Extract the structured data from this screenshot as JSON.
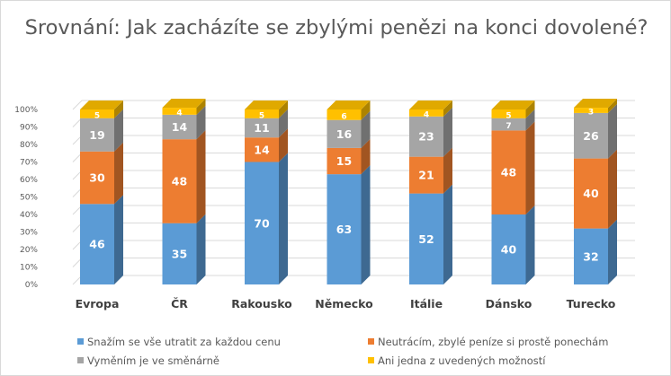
{
  "chart_data": {
    "type": "bar",
    "stacked": true,
    "percent": true,
    "three_d": true,
    "title": "Srovnání: Jak zacházíte se zbylými penězi na konci dovolené?",
    "categories": [
      "Evropa",
      "ČR",
      "Rakousko",
      "Německo",
      "Itálie",
      "Dánsko",
      "Turecko"
    ],
    "ylim": [
      0,
      100
    ],
    "yticks": [
      "0%",
      "10%",
      "20%",
      "30%",
      "40%",
      "50%",
      "60%",
      "70%",
      "80%",
      "90%",
      "100%"
    ],
    "grid": true,
    "legend_position": "bottom",
    "series": [
      {
        "name": "Snažím se vše utratit za každou cenu",
        "color": "#5b9bd5",
        "values": [
          46,
          35,
          70,
          63,
          52,
          40,
          32
        ]
      },
      {
        "name": "Neutrácím, zbylé peníze si prostě ponechám",
        "color": "#ed7d31",
        "values": [
          30,
          48,
          14,
          15,
          21,
          48,
          40
        ]
      },
      {
        "name": "Vyměním je ve směnárně",
        "color": "#a5a5a5",
        "values": [
          19,
          14,
          11,
          16,
          23,
          7,
          26
        ]
      },
      {
        "name": "Ani jedna z uvedených možností",
        "color": "#ffc000",
        "values": [
          5,
          4,
          5,
          6,
          4,
          5,
          3
        ]
      }
    ]
  }
}
